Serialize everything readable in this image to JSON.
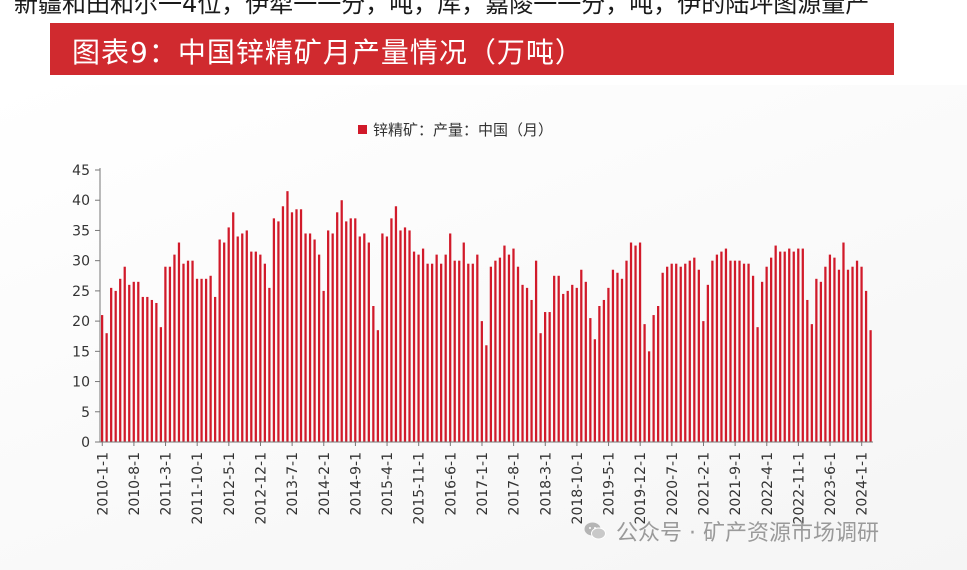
{
  "header": {
    "top_text": "新疆和田和尔一4位，伊犁一一分，吨，库，嘉陵一一分，吨，伊的陆坪图源量产",
    "banner_title": "图表9：中国锌精矿月产量情况（万吨）"
  },
  "watermark": {
    "text": "公众号 · 矿产资源市场调研",
    "icon": "wechat-icon"
  },
  "colors": {
    "banner": "#d02a2f",
    "bar": "#d11a2a"
  },
  "chart_data": {
    "type": "bar",
    "title": "",
    "xlabel": "",
    "ylabel": "",
    "ylim": [
      0,
      45
    ],
    "yticks": [
      0,
      5,
      10,
      15,
      20,
      25,
      30,
      35,
      40,
      45
    ],
    "grid": false,
    "legend_position": "top-center",
    "xtick_labels": [
      "2010-1-1",
      "2010-8-1",
      "2011-3-1",
      "2011-10-1",
      "2012-5-1",
      "2012-12-1",
      "2013-7-1",
      "2014-2-1",
      "2014-9-1",
      "2015-4-1",
      "2015-11-1",
      "2016-6-1",
      "2017-1-1",
      "2017-8-1",
      "2018-3-1",
      "2018-10-1",
      "2019-5-1",
      "2019-12-1",
      "2020-7-1",
      "2021-2-1",
      "2021-9-1",
      "2022-4-1",
      "2022-11-1",
      "2023-6-1",
      "2024-1-1"
    ],
    "start_period": "2010-1",
    "series": [
      {
        "name": "锌精矿：产量：中国（月）",
        "values": [
          21,
          18,
          25.5,
          25,
          27,
          29,
          26,
          26.5,
          26.5,
          24,
          24,
          23.5,
          23,
          19,
          29,
          29,
          31,
          33,
          29.5,
          30,
          30,
          27,
          27,
          27,
          27.5,
          24,
          33.5,
          33,
          35.5,
          38,
          34,
          34.5,
          35,
          31.5,
          31.5,
          31,
          29.5,
          25.5,
          37,
          36.5,
          39,
          41.5,
          38,
          38.5,
          38.5,
          34.5,
          34.5,
          33.5,
          31,
          25,
          35,
          34.5,
          38,
          40,
          36.5,
          37,
          37,
          34,
          34.5,
          33,
          22.5,
          18.5,
          34.5,
          34,
          37,
          39,
          35,
          35.5,
          35,
          31.5,
          31,
          32,
          29.5,
          29.5,
          31,
          29.5,
          31,
          34.5,
          30,
          30,
          33,
          29.5,
          29.5,
          31,
          20,
          16,
          29,
          30,
          30.5,
          32.5,
          31,
          32,
          29,
          26,
          25.5,
          23.5,
          30,
          18,
          21.5,
          21.5,
          27.5,
          27.5,
          24.5,
          25,
          26,
          25.5,
          28.5,
          26.5,
          20.5,
          17,
          22.5,
          23.5,
          25.5,
          28.5,
          28,
          27,
          30,
          33,
          32.5,
          33,
          19.5,
          15,
          21,
          22.5,
          28,
          29,
          29.5,
          29.5,
          29,
          29.5,
          30,
          30.5,
          28.5,
          20,
          26,
          30,
          31,
          31.5,
          32,
          30,
          30,
          30,
          29.5,
          29.5,
          27.5,
          19,
          26.5,
          29,
          30.5,
          32.5,
          31.5,
          31.5,
          32,
          31.5,
          32,
          32,
          23.5,
          19.5,
          27,
          26.5,
          29,
          31,
          30.5,
          28.5,
          33,
          28.5,
          29,
          30,
          29,
          25,
          18.5
        ]
      }
    ]
  }
}
